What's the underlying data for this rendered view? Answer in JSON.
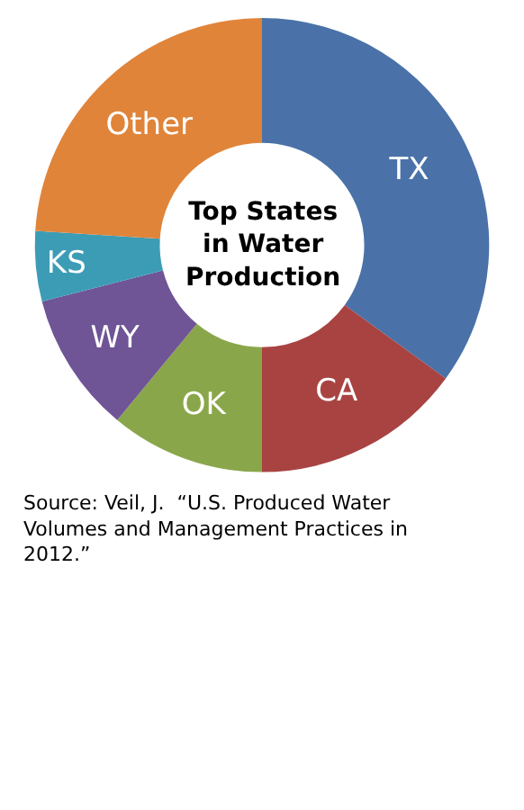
{
  "chart_data": {
    "type": "donut",
    "title": "Top States in Water Production",
    "categories": [
      "TX",
      "CA",
      "OK",
      "WY",
      "KS",
      "Other"
    ],
    "values": [
      35,
      15,
      11,
      10,
      5,
      24
    ],
    "colors": [
      "#4a72a8",
      "#a84342",
      "#8aa64a",
      "#6f5496",
      "#3d9cb5",
      "#e0843a"
    ],
    "legend": false,
    "annotations": [
      "Source: Veil, J.  “U.S. Produced Water Volumes and Management Practices in 2012.”"
    ]
  }
}
